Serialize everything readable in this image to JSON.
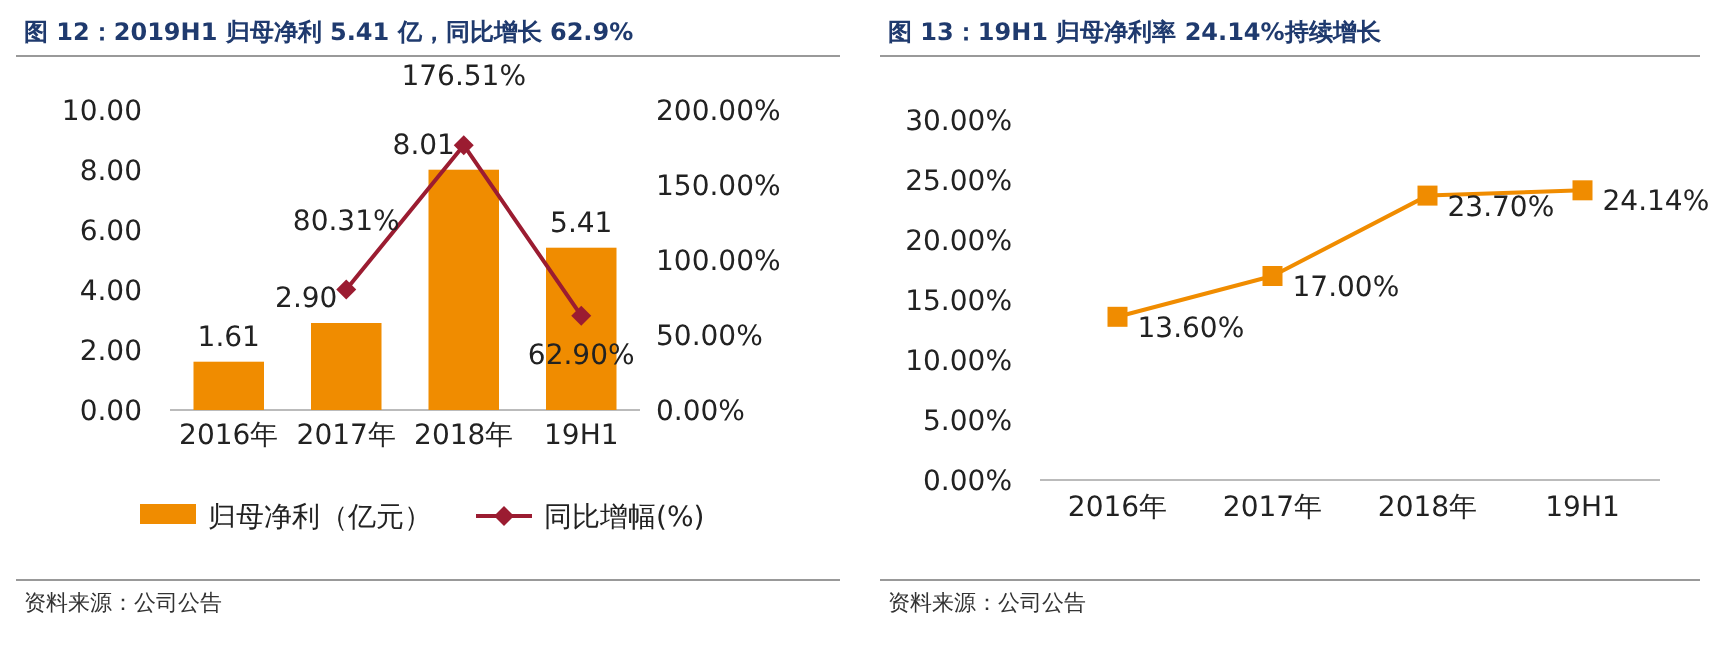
{
  "chart_data": [
    {
      "type": "bar",
      "title": "图 12：2019H1 归母净利 5.41 亿，同比增长 62.9%",
      "categories": [
        "2016年",
        "2017年",
        "2018年",
        "19H1"
      ],
      "ylim": [
        0,
        10
      ],
      "yticks": [
        {
          "value": 0,
          "label": "0.00"
        },
        {
          "value": 2,
          "label": "2.00"
        },
        {
          "value": 4,
          "label": "4.00"
        },
        {
          "value": 6,
          "label": "6.00"
        },
        {
          "value": 8,
          "label": "8.00"
        },
        {
          "value": 10,
          "label": "10.00"
        }
      ],
      "y2lim": [
        0,
        200
      ],
      "y2ticks": [
        {
          "value": 0,
          "label": "0.00%"
        },
        {
          "value": 50,
          "label": "50.00%"
        },
        {
          "value": 100,
          "label": "100.00%"
        },
        {
          "value": 150,
          "label": "150.00%"
        },
        {
          "value": 200,
          "label": "200.00%"
        }
      ],
      "legend": "bottom",
      "annotations": [
        "资料来源：公司公告"
      ],
      "series": [
        {
          "name": "归母净利（亿元）",
          "color": "#f08c00",
          "values": [
            1.61,
            2.9,
            8.01,
            5.41
          ],
          "value_labels": [
            "1.61",
            "2.90",
            "8.01",
            "5.41"
          ]
        },
        {
          "name": "同比增幅(%)",
          "type": "line",
          "axis": "y2",
          "color": "#9b1c31",
          "marker": "diamond",
          "values": [
            null,
            80.31,
            176.51,
            62.9
          ],
          "value_labels": [
            null,
            "80.31%",
            "176.51%",
            "62.90%"
          ]
        }
      ]
    },
    {
      "type": "line",
      "title": "图 13：19H1 归母净利率 24.14%持续增长",
      "categories": [
        "2016年",
        "2017年",
        "2018年",
        "19H1"
      ],
      "ylim": [
        0,
        30
      ],
      "yticks": [
        {
          "value": 0,
          "label": "0.00%"
        },
        {
          "value": 5,
          "label": "5.00%"
        },
        {
          "value": 10,
          "label": "10.00%"
        },
        {
          "value": 15,
          "label": "15.00%"
        },
        {
          "value": 20,
          "label": "20.00%"
        },
        {
          "value": 25,
          "label": "25.00%"
        },
        {
          "value": 30,
          "label": "30.00%"
        }
      ],
      "annotations": [
        "资料来源：公司公告"
      ],
      "series": [
        {
          "color": "#f08c00",
          "marker": "square",
          "values": [
            13.6,
            17.0,
            23.7,
            24.14
          ],
          "value_labels": [
            "13.60%",
            "17.00%",
            "23.70%",
            "24.14%"
          ]
        }
      ]
    }
  ]
}
